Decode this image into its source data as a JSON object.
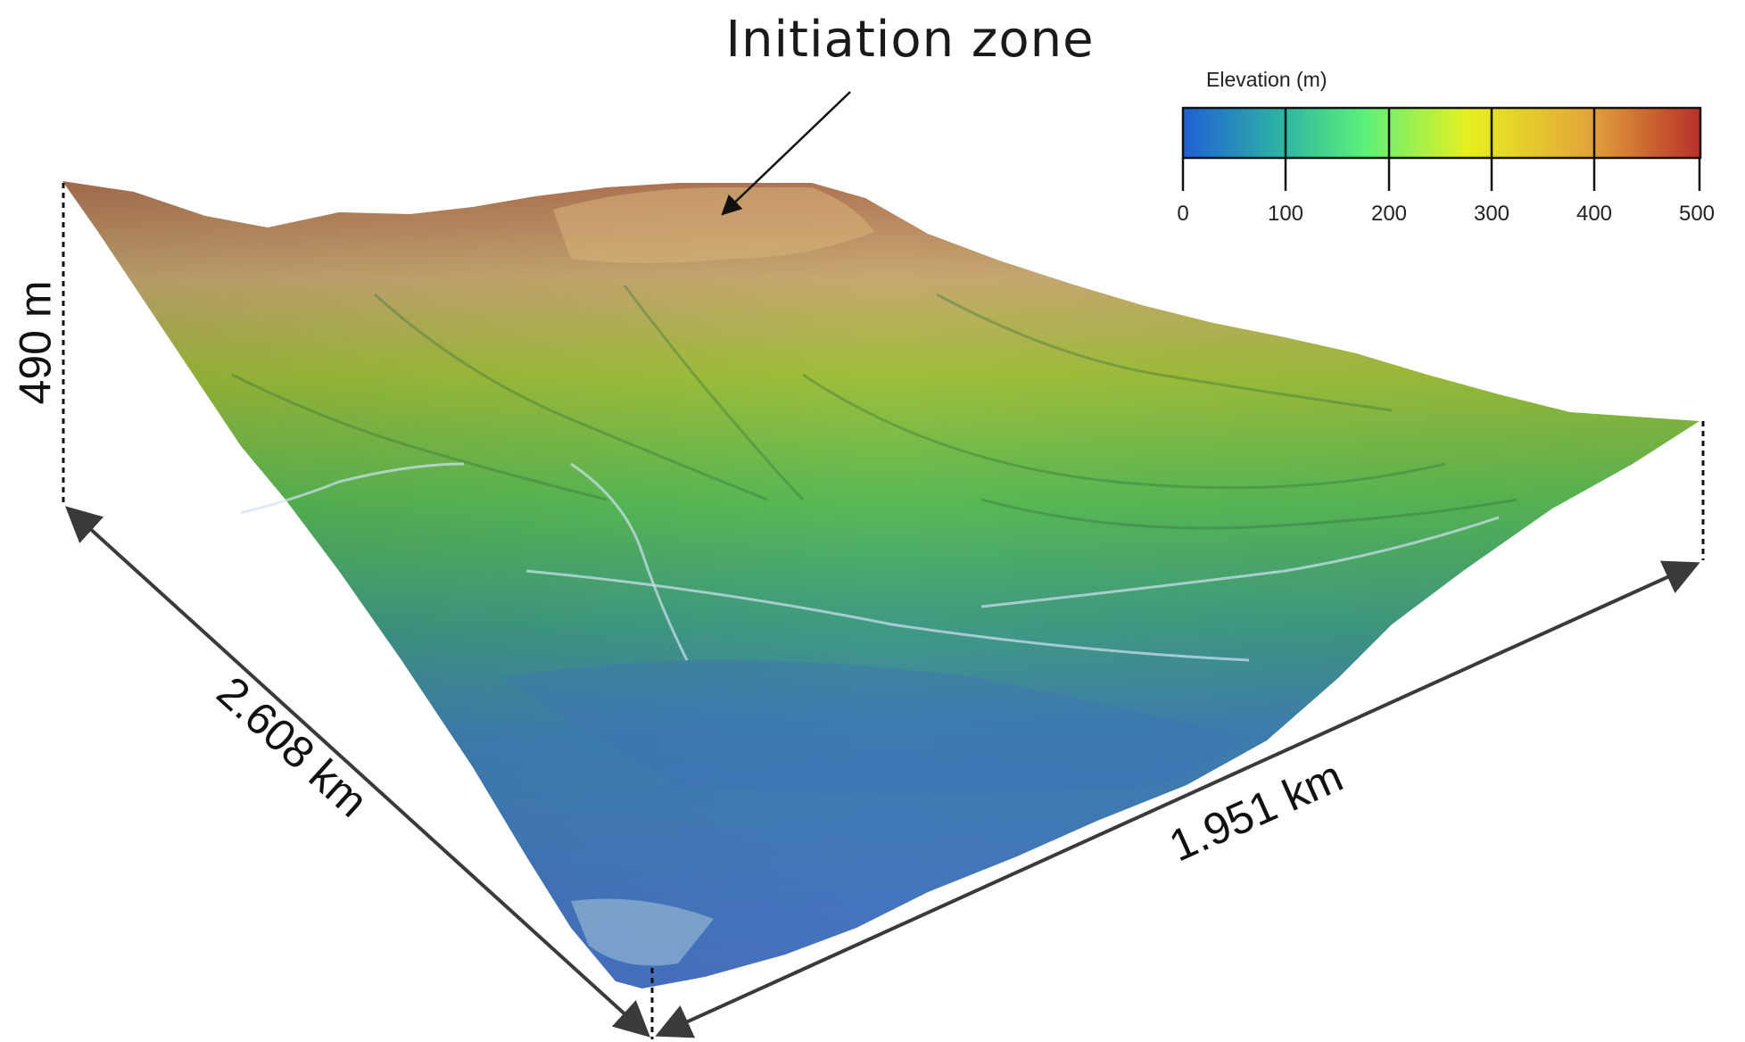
{
  "annotation": {
    "label": "Initiation zone"
  },
  "colorbar": {
    "title": "Elevation (m)",
    "ticks": [
      "0",
      "100",
      "200",
      "300",
      "400",
      "500"
    ],
    "colors": [
      "#1f5fd6",
      "#2fb8a0",
      "#5cf07a",
      "#e6f01e",
      "#e3a73a",
      "#b8302a"
    ]
  },
  "dimensions": {
    "height": "490 m",
    "left_edge": "2.608 km",
    "right_edge": "1.951 km"
  },
  "terrain_colors": {
    "low": "#4a7ec4",
    "mid": "#5cb85a",
    "high": "#c9a468",
    "peak": "#a4604a"
  }
}
